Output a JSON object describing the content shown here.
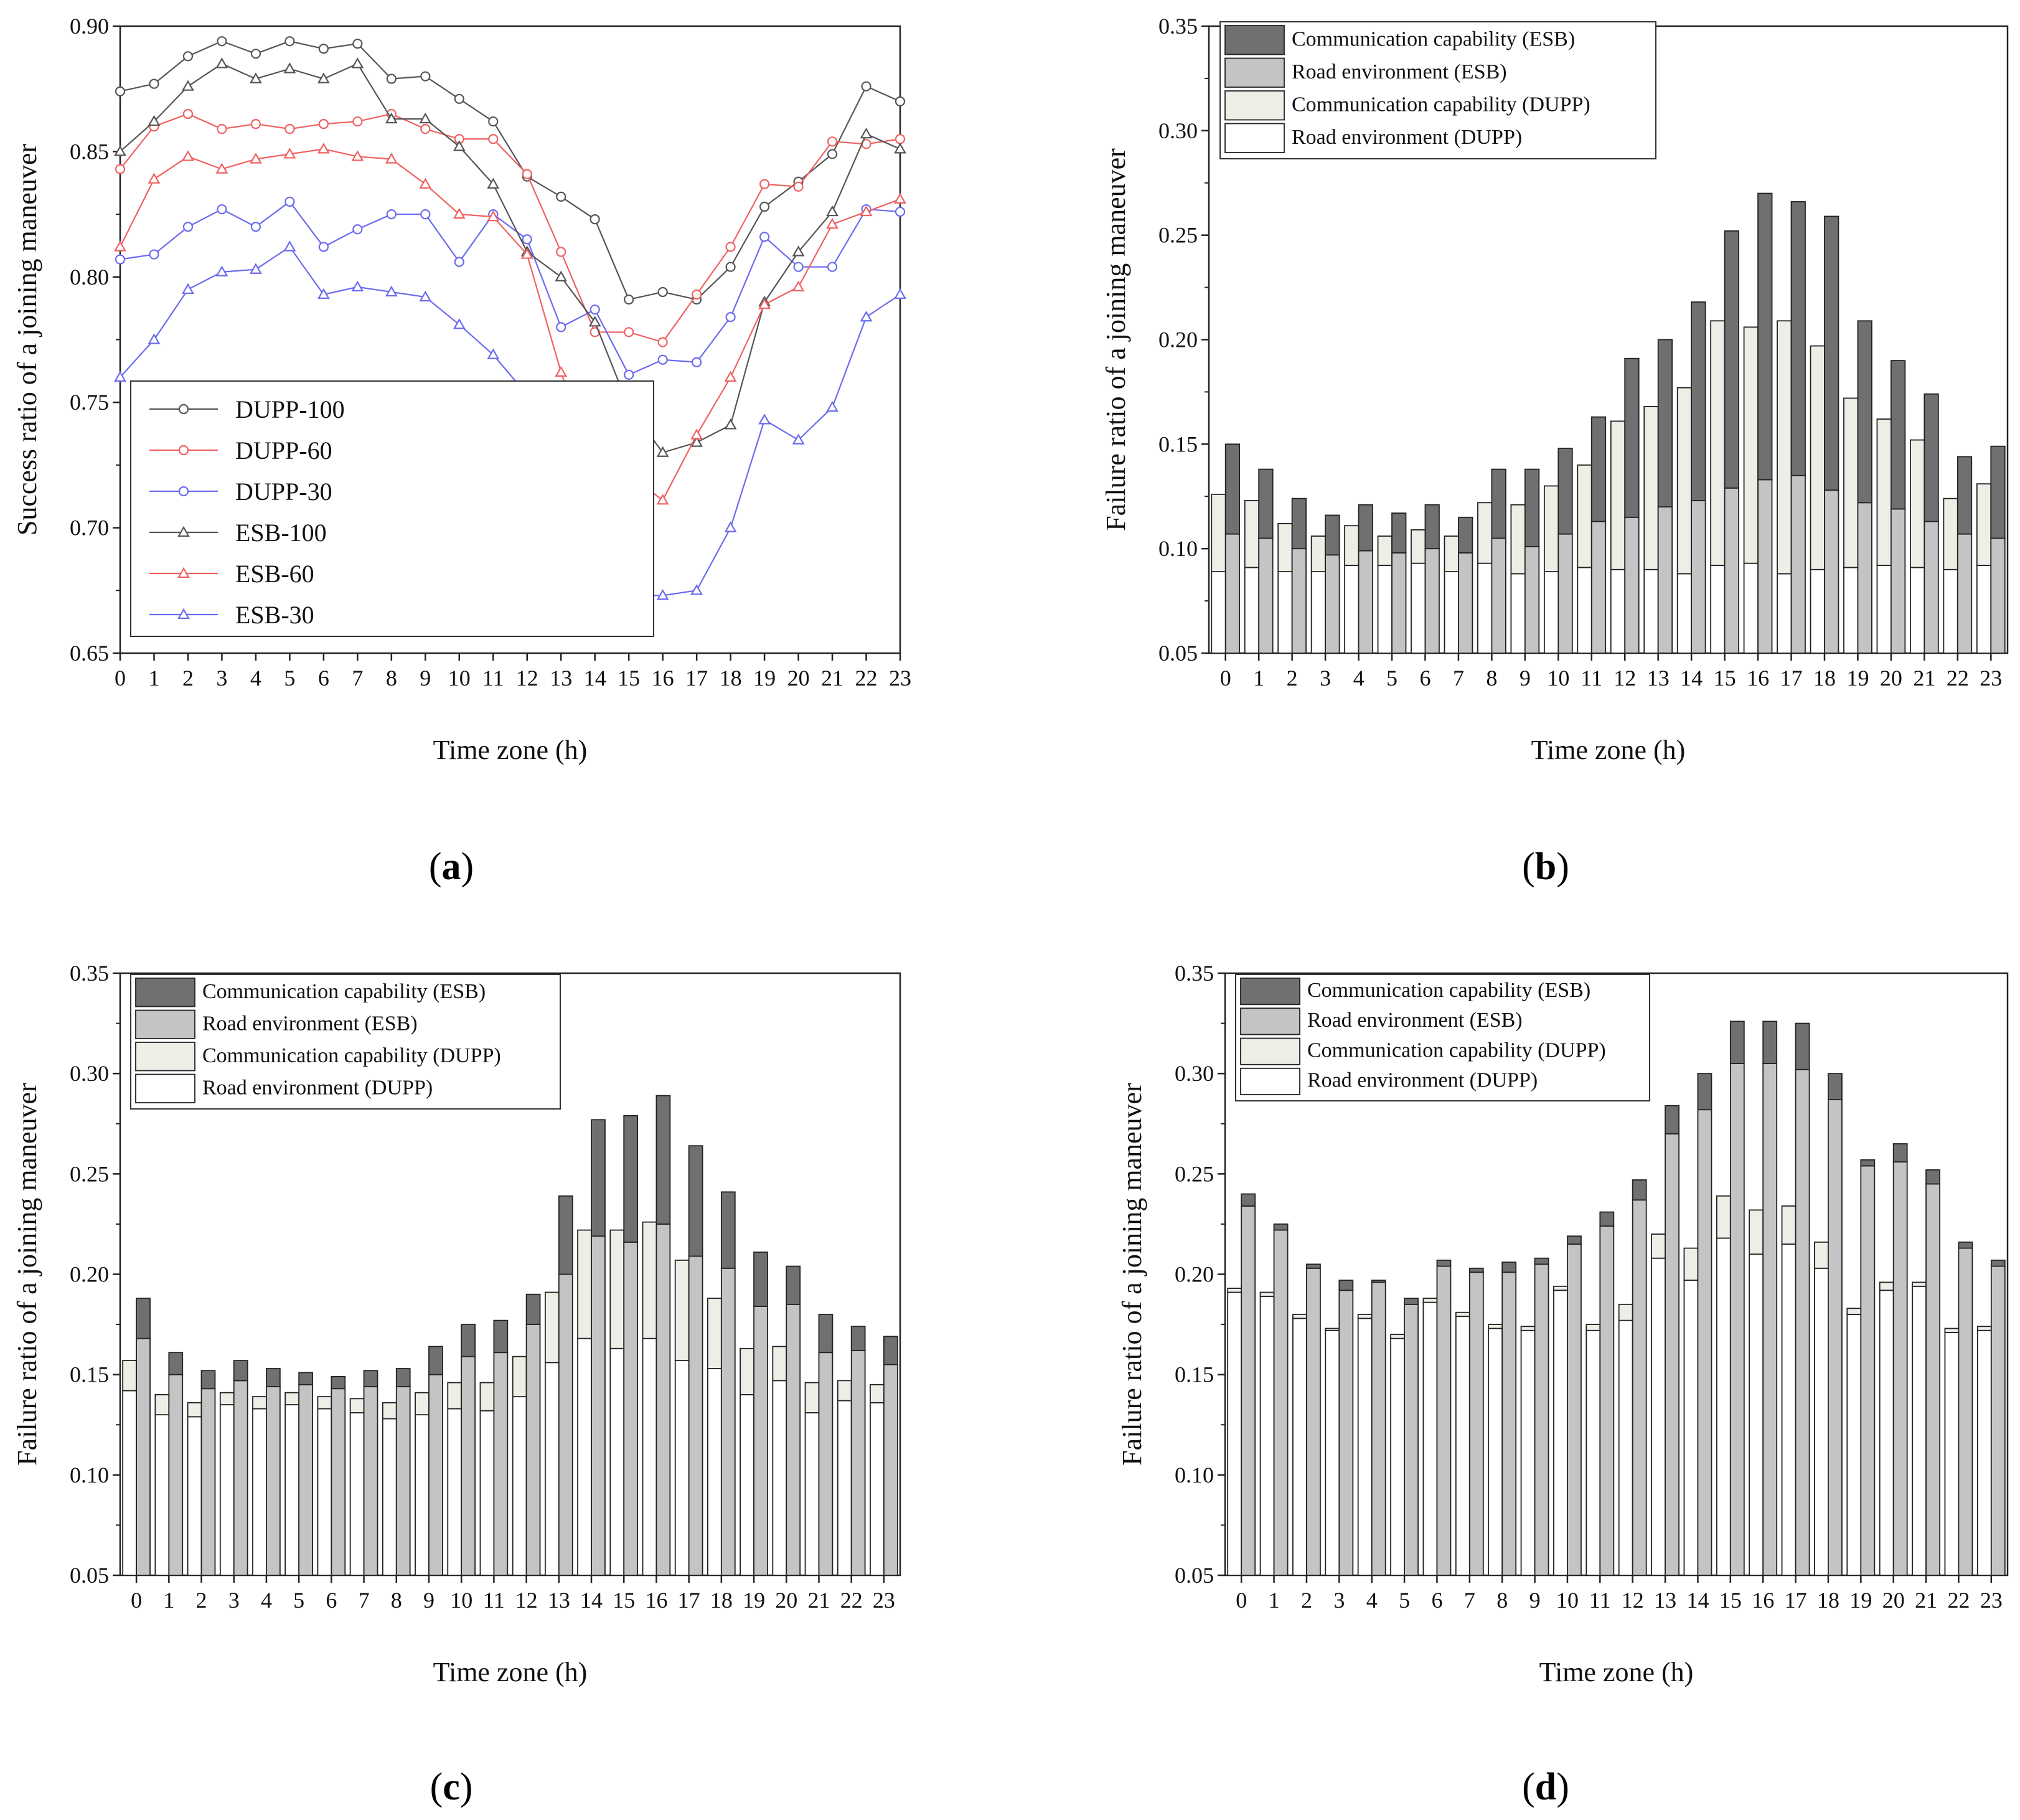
{
  "chart_data": [
    {
      "panel_label": "a",
      "type": "line",
      "ylabel": "Success ratio of a joining maneuver",
      "xlabel": "Time zone (h)",
      "ylim": [
        0.65,
        0.9
      ],
      "yticks": [
        "0.65",
        "0.70",
        "0.75",
        "0.80",
        "0.85",
        "0.90"
      ],
      "x": [
        0,
        1,
        2,
        3,
        4,
        5,
        6,
        7,
        8,
        9,
        10,
        11,
        12,
        13,
        14,
        15,
        16,
        17,
        18,
        19,
        20,
        21,
        22,
        23
      ],
      "xtick_labels": [
        "0",
        "1",
        "2",
        "3",
        "4",
        "5",
        "6",
        "7",
        "8",
        "9",
        "10",
        "11",
        "12",
        "13",
        "14",
        "15",
        "16",
        "17",
        "18",
        "19",
        "20",
        "21",
        "22",
        "23"
      ],
      "legend_position": "bottom-left",
      "series": [
        {
          "name": "DUPP-100",
          "color": "#555555",
          "marker": "circle",
          "values": [
            0.874,
            0.877,
            0.888,
            0.894,
            0.889,
            0.894,
            0.891,
            0.893,
            0.879,
            0.88,
            0.871,
            0.862,
            0.84,
            0.832,
            0.823,
            0.791,
            0.794,
            0.791,
            0.804,
            0.828,
            0.838,
            0.849,
            0.876,
            0.87
          ]
        },
        {
          "name": "DUPP-60",
          "color": "#f06060",
          "marker": "circle",
          "values": [
            0.843,
            0.86,
            0.865,
            0.859,
            0.861,
            0.859,
            0.861,
            0.862,
            0.865,
            0.859,
            0.855,
            0.855,
            0.841,
            0.81,
            0.778,
            0.778,
            0.774,
            0.793,
            0.812,
            0.837,
            0.836,
            0.854,
            0.853,
            0.855
          ]
        },
        {
          "name": "DUPP-30",
          "color": "#6a6af0",
          "marker": "circle",
          "values": [
            0.807,
            0.809,
            0.82,
            0.827,
            0.82,
            0.83,
            0.812,
            0.819,
            0.825,
            0.825,
            0.806,
            0.825,
            0.815,
            0.78,
            0.787,
            0.761,
            0.767,
            0.766,
            0.784,
            0.816,
            0.804,
            0.804,
            0.827,
            0.826
          ]
        },
        {
          "name": "ESB-100",
          "color": "#555555",
          "marker": "triangle",
          "values": [
            0.85,
            0.862,
            0.876,
            0.885,
            0.879,
            0.883,
            0.879,
            0.885,
            0.863,
            0.863,
            0.852,
            0.837,
            0.81,
            0.8,
            0.782,
            0.748,
            0.73,
            0.734,
            0.741,
            0.79,
            0.81,
            0.826,
            0.857,
            0.851
          ]
        },
        {
          "name": "ESB-60",
          "color": "#f06060",
          "marker": "triangle",
          "values": [
            0.812,
            0.839,
            0.848,
            0.843,
            0.847,
            0.849,
            0.851,
            0.848,
            0.847,
            0.837,
            0.825,
            0.824,
            0.809,
            0.762,
            0.723,
            0.721,
            0.711,
            0.737,
            0.76,
            0.789,
            0.796,
            0.821,
            0.826,
            0.831
          ]
        },
        {
          "name": "ESB-30",
          "color": "#6a6af0",
          "marker": "triangle",
          "values": [
            0.76,
            0.775,
            0.795,
            0.802,
            0.803,
            0.812,
            0.793,
            0.796,
            0.794,
            0.792,
            0.781,
            0.769,
            0.753,
            0.716,
            0.7,
            0.673,
            0.673,
            0.675,
            0.7,
            0.743,
            0.735,
            0.748,
            0.784,
            0.793
          ]
        }
      ]
    },
    {
      "panel_label": "b",
      "type": "bar",
      "ylabel": "Failure ratio of a joining maneuver",
      "xlabel": "Time zone (h)",
      "ylim": [
        0.05,
        0.35
      ],
      "yticks": [
        "0.05",
        "0.10",
        "0.15",
        "0.20",
        "0.25",
        "0.30",
        "0.35"
      ],
      "categories": [
        "0",
        "1",
        "2",
        "3",
        "4",
        "5",
        "6",
        "7",
        "8",
        "9",
        "10",
        "11",
        "12",
        "13",
        "14",
        "15",
        "16",
        "17",
        "18",
        "19",
        "20",
        "21",
        "22",
        "23"
      ],
      "legend_position": "top-left",
      "legend": [
        {
          "label": "Communication capability (ESB)",
          "color": "#707070"
        },
        {
          "label": "Road environment (ESB)",
          "color": "#c4c4c4"
        },
        {
          "label": "Communication capability (DUPP)",
          "color": "#eeeee6"
        },
        {
          "label": "Road environment (DUPP)",
          "color": "#ffffff"
        }
      ],
      "dupp_road": [
        0.089,
        0.091,
        0.089,
        0.089,
        0.092,
        0.092,
        0.093,
        0.089,
        0.093,
        0.088,
        0.089,
        0.091,
        0.09,
        0.09,
        0.088,
        0.092,
        0.093,
        0.088,
        0.09,
        0.091,
        0.092,
        0.091,
        0.09,
        0.092
      ],
      "dupp_total": [
        0.126,
        0.123,
        0.112,
        0.106,
        0.111,
        0.106,
        0.109,
        0.106,
        0.122,
        0.121,
        0.13,
        0.14,
        0.161,
        0.168,
        0.177,
        0.209,
        0.206,
        0.209,
        0.197,
        0.172,
        0.162,
        0.152,
        0.124,
        0.131
      ],
      "esb_road": [
        0.107,
        0.105,
        0.1,
        0.097,
        0.099,
        0.098,
        0.1,
        0.098,
        0.105,
        0.101,
        0.107,
        0.113,
        0.115,
        0.12,
        0.123,
        0.129,
        0.133,
        0.135,
        0.128,
        0.122,
        0.119,
        0.113,
        0.107,
        0.105
      ],
      "esb_total": [
        0.15,
        0.138,
        0.124,
        0.116,
        0.121,
        0.117,
        0.121,
        0.115,
        0.138,
        0.138,
        0.148,
        0.163,
        0.191,
        0.2,
        0.218,
        0.252,
        0.27,
        0.266,
        0.259,
        0.209,
        0.19,
        0.174,
        0.144,
        0.149
      ]
    },
    {
      "panel_label": "c",
      "type": "bar",
      "ylabel": "Failure ratio of a joining maneuver",
      "xlabel": "Time zone (h)",
      "ylim": [
        0.05,
        0.35
      ],
      "yticks": [
        "0.05",
        "0.10",
        "0.15",
        "0.20",
        "0.25",
        "0.30",
        "0.35"
      ],
      "categories": [
        "0",
        "1",
        "2",
        "3",
        "4",
        "5",
        "6",
        "7",
        "8",
        "9",
        "10",
        "11",
        "12",
        "13",
        "14",
        "15",
        "16",
        "17",
        "18",
        "19",
        "20",
        "21",
        "22",
        "23"
      ],
      "legend_position": "top-left",
      "legend": [
        {
          "label": "Communication capability (ESB)",
          "color": "#707070"
        },
        {
          "label": "Road environment (ESB)",
          "color": "#c4c4c4"
        },
        {
          "label": "Communication capability (DUPP)",
          "color": "#eeeee6"
        },
        {
          "label": "Road environment (DUPP)",
          "color": "#ffffff"
        }
      ],
      "dupp_road": [
        0.142,
        0.13,
        0.129,
        0.135,
        0.133,
        0.135,
        0.133,
        0.131,
        0.128,
        0.13,
        0.133,
        0.132,
        0.139,
        0.156,
        0.168,
        0.163,
        0.168,
        0.157,
        0.153,
        0.14,
        0.147,
        0.131,
        0.137,
        0.136
      ],
      "dupp_total": [
        0.157,
        0.14,
        0.136,
        0.141,
        0.139,
        0.141,
        0.139,
        0.138,
        0.136,
        0.141,
        0.146,
        0.146,
        0.159,
        0.191,
        0.222,
        0.222,
        0.226,
        0.207,
        0.188,
        0.163,
        0.164,
        0.146,
        0.147,
        0.145
      ],
      "esb_road": [
        0.168,
        0.15,
        0.143,
        0.147,
        0.144,
        0.145,
        0.143,
        0.144,
        0.144,
        0.15,
        0.159,
        0.161,
        0.175,
        0.2,
        0.219,
        0.216,
        0.225,
        0.209,
        0.203,
        0.184,
        0.185,
        0.161,
        0.162,
        0.155
      ],
      "esb_total": [
        0.188,
        0.161,
        0.152,
        0.157,
        0.153,
        0.151,
        0.149,
        0.152,
        0.153,
        0.164,
        0.175,
        0.177,
        0.19,
        0.239,
        0.277,
        0.279,
        0.289,
        0.264,
        0.241,
        0.211,
        0.204,
        0.18,
        0.174,
        0.169
      ]
    },
    {
      "panel_label": "d",
      "type": "bar",
      "ylabel": "Failure ratio of a joining maneuver",
      "xlabel": "Time zone (h)",
      "ylim": [
        0.05,
        0.35
      ],
      "yticks": [
        "0.05",
        "0.10",
        "0.15",
        "0.20",
        "0.25",
        "0.30",
        "0.35"
      ],
      "categories": [
        "0",
        "1",
        "2",
        "3",
        "4",
        "5",
        "6",
        "7",
        "8",
        "9",
        "10",
        "11",
        "12",
        "13",
        "14",
        "15",
        "16",
        "17",
        "18",
        "19",
        "20",
        "21",
        "22",
        "23"
      ],
      "legend_position": "top-left",
      "legend": [
        {
          "label": "Communication capability (ESB)",
          "color": "#707070"
        },
        {
          "label": "Road environment (ESB)",
          "color": "#c4c4c4"
        },
        {
          "label": "Communication capability (DUPP)",
          "color": "#eeeee6"
        },
        {
          "label": "Road environment (DUPP)",
          "color": "#ffffff"
        }
      ],
      "dupp_road": [
        0.191,
        0.189,
        0.178,
        0.172,
        0.178,
        0.168,
        0.186,
        0.179,
        0.173,
        0.172,
        0.192,
        0.172,
        0.177,
        0.208,
        0.197,
        0.218,
        0.21,
        0.215,
        0.203,
        0.18,
        0.192,
        0.194,
        0.171,
        0.172
      ],
      "dupp_total": [
        0.193,
        0.191,
        0.18,
        0.173,
        0.18,
        0.17,
        0.188,
        0.181,
        0.175,
        0.174,
        0.194,
        0.175,
        0.185,
        0.22,
        0.213,
        0.239,
        0.232,
        0.234,
        0.216,
        0.183,
        0.196,
        0.196,
        0.173,
        0.174
      ],
      "esb_road": [
        0.234,
        0.222,
        0.203,
        0.192,
        0.196,
        0.185,
        0.204,
        0.201,
        0.201,
        0.205,
        0.215,
        0.224,
        0.237,
        0.27,
        0.282,
        0.305,
        0.305,
        0.302,
        0.287,
        0.254,
        0.256,
        0.245,
        0.213,
        0.204
      ],
      "esb_total": [
        0.24,
        0.225,
        0.205,
        0.197,
        0.197,
        0.188,
        0.207,
        0.203,
        0.206,
        0.208,
        0.219,
        0.231,
        0.247,
        0.284,
        0.3,
        0.326,
        0.326,
        0.325,
        0.3,
        0.257,
        0.265,
        0.252,
        0.216,
        0.207
      ]
    }
  ]
}
